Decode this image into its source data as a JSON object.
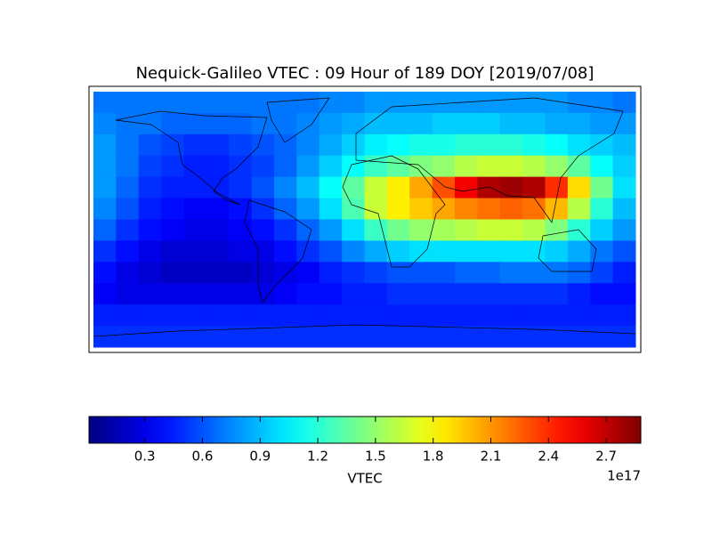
{
  "chart_data": {
    "type": "heatmap",
    "title": "Nequick-Galileo VTEC : 09 Hour of 189 DOY [2019/07/08]",
    "colormap": "jet",
    "z": [
      [
        0.7,
        0.7,
        0.7,
        0.7,
        0.7,
        0.7,
        0.7,
        0.7,
        0.7,
        0.7,
        0.75,
        0.75,
        0.8,
        0.8,
        0.8,
        0.8,
        0.8,
        0.8,
        0.8,
        0.8,
        0.8,
        0.75,
        0.75,
        0.7
      ],
      [
        0.75,
        0.7,
        0.7,
        0.65,
        0.65,
        0.65,
        0.65,
        0.7,
        0.7,
        0.75,
        0.8,
        0.85,
        0.9,
        0.9,
        0.9,
        0.95,
        0.95,
        0.95,
        0.9,
        0.9,
        0.85,
        0.85,
        0.8,
        0.8
      ],
      [
        0.8,
        0.7,
        0.6,
        0.55,
        0.5,
        0.5,
        0.55,
        0.6,
        0.65,
        0.75,
        0.85,
        0.95,
        1.05,
        1.1,
        1.15,
        1.15,
        1.2,
        1.2,
        1.2,
        1.15,
        1.1,
        1.0,
        0.95,
        0.9
      ],
      [
        0.8,
        0.7,
        0.55,
        0.5,
        0.45,
        0.45,
        0.5,
        0.55,
        0.65,
        0.8,
        0.95,
        1.1,
        1.25,
        1.35,
        1.45,
        1.5,
        1.6,
        1.65,
        1.65,
        1.6,
        1.5,
        1.35,
        1.1,
        0.95
      ],
      [
        0.8,
        0.65,
        0.5,
        0.45,
        0.45,
        0.45,
        0.5,
        0.6,
        0.75,
        0.9,
        1.1,
        1.35,
        1.65,
        1.85,
        2.05,
        2.3,
        2.55,
        2.75,
        2.8,
        2.75,
        2.4,
        1.9,
        1.4,
        1.0
      ],
      [
        0.75,
        0.6,
        0.45,
        0.4,
        0.35,
        0.35,
        0.4,
        0.5,
        0.65,
        0.8,
        1.0,
        1.3,
        1.65,
        1.85,
        1.95,
        2.05,
        2.15,
        2.2,
        2.25,
        2.2,
        2.0,
        1.6,
        1.2,
        0.9
      ],
      [
        0.65,
        0.5,
        0.4,
        0.35,
        0.3,
        0.3,
        0.35,
        0.4,
        0.5,
        0.65,
        0.8,
        1.0,
        1.25,
        1.4,
        1.5,
        1.55,
        1.6,
        1.65,
        1.65,
        1.6,
        1.45,
        1.2,
        0.95,
        0.8
      ],
      [
        0.5,
        0.4,
        0.3,
        0.25,
        0.25,
        0.25,
        0.3,
        0.3,
        0.4,
        0.5,
        0.6,
        0.75,
        0.85,
        0.95,
        1.0,
        1.0,
        1.0,
        1.0,
        1.0,
        1.0,
        0.95,
        0.85,
        0.7,
        0.6
      ],
      [
        0.4,
        0.3,
        0.25,
        0.2,
        0.2,
        0.2,
        0.2,
        0.25,
        0.3,
        0.35,
        0.45,
        0.5,
        0.55,
        0.6,
        0.6,
        0.6,
        0.65,
        0.65,
        0.7,
        0.7,
        0.7,
        0.65,
        0.55,
        0.45
      ],
      [
        0.35,
        0.3,
        0.3,
        0.3,
        0.3,
        0.3,
        0.3,
        0.3,
        0.35,
        0.4,
        0.4,
        0.45,
        0.45,
        0.5,
        0.5,
        0.5,
        0.5,
        0.5,
        0.5,
        0.5,
        0.5,
        0.45,
        0.4,
        0.4
      ],
      [
        0.45,
        0.45,
        0.45,
        0.45,
        0.45,
        0.45,
        0.45,
        0.45,
        0.45,
        0.45,
        0.45,
        0.45,
        0.45,
        0.45,
        0.45,
        0.45,
        0.45,
        0.45,
        0.45,
        0.45,
        0.45,
        0.45,
        0.45,
        0.45
      ],
      [
        0.5,
        0.5,
        0.5,
        0.5,
        0.5,
        0.5,
        0.5,
        0.5,
        0.5,
        0.5,
        0.5,
        0.5,
        0.5,
        0.5,
        0.5,
        0.5,
        0.5,
        0.5,
        0.5,
        0.5,
        0.5,
        0.5,
        0.5,
        0.5
      ]
    ],
    "colorbar": {
      "label": "VTEC",
      "offset_label": "1e17",
      "lim": [
        0.01,
        2.88
      ],
      "ticks": [
        0.3,
        0.6,
        0.9,
        1.2,
        1.5,
        1.8,
        2.1,
        2.4,
        2.7
      ]
    }
  }
}
